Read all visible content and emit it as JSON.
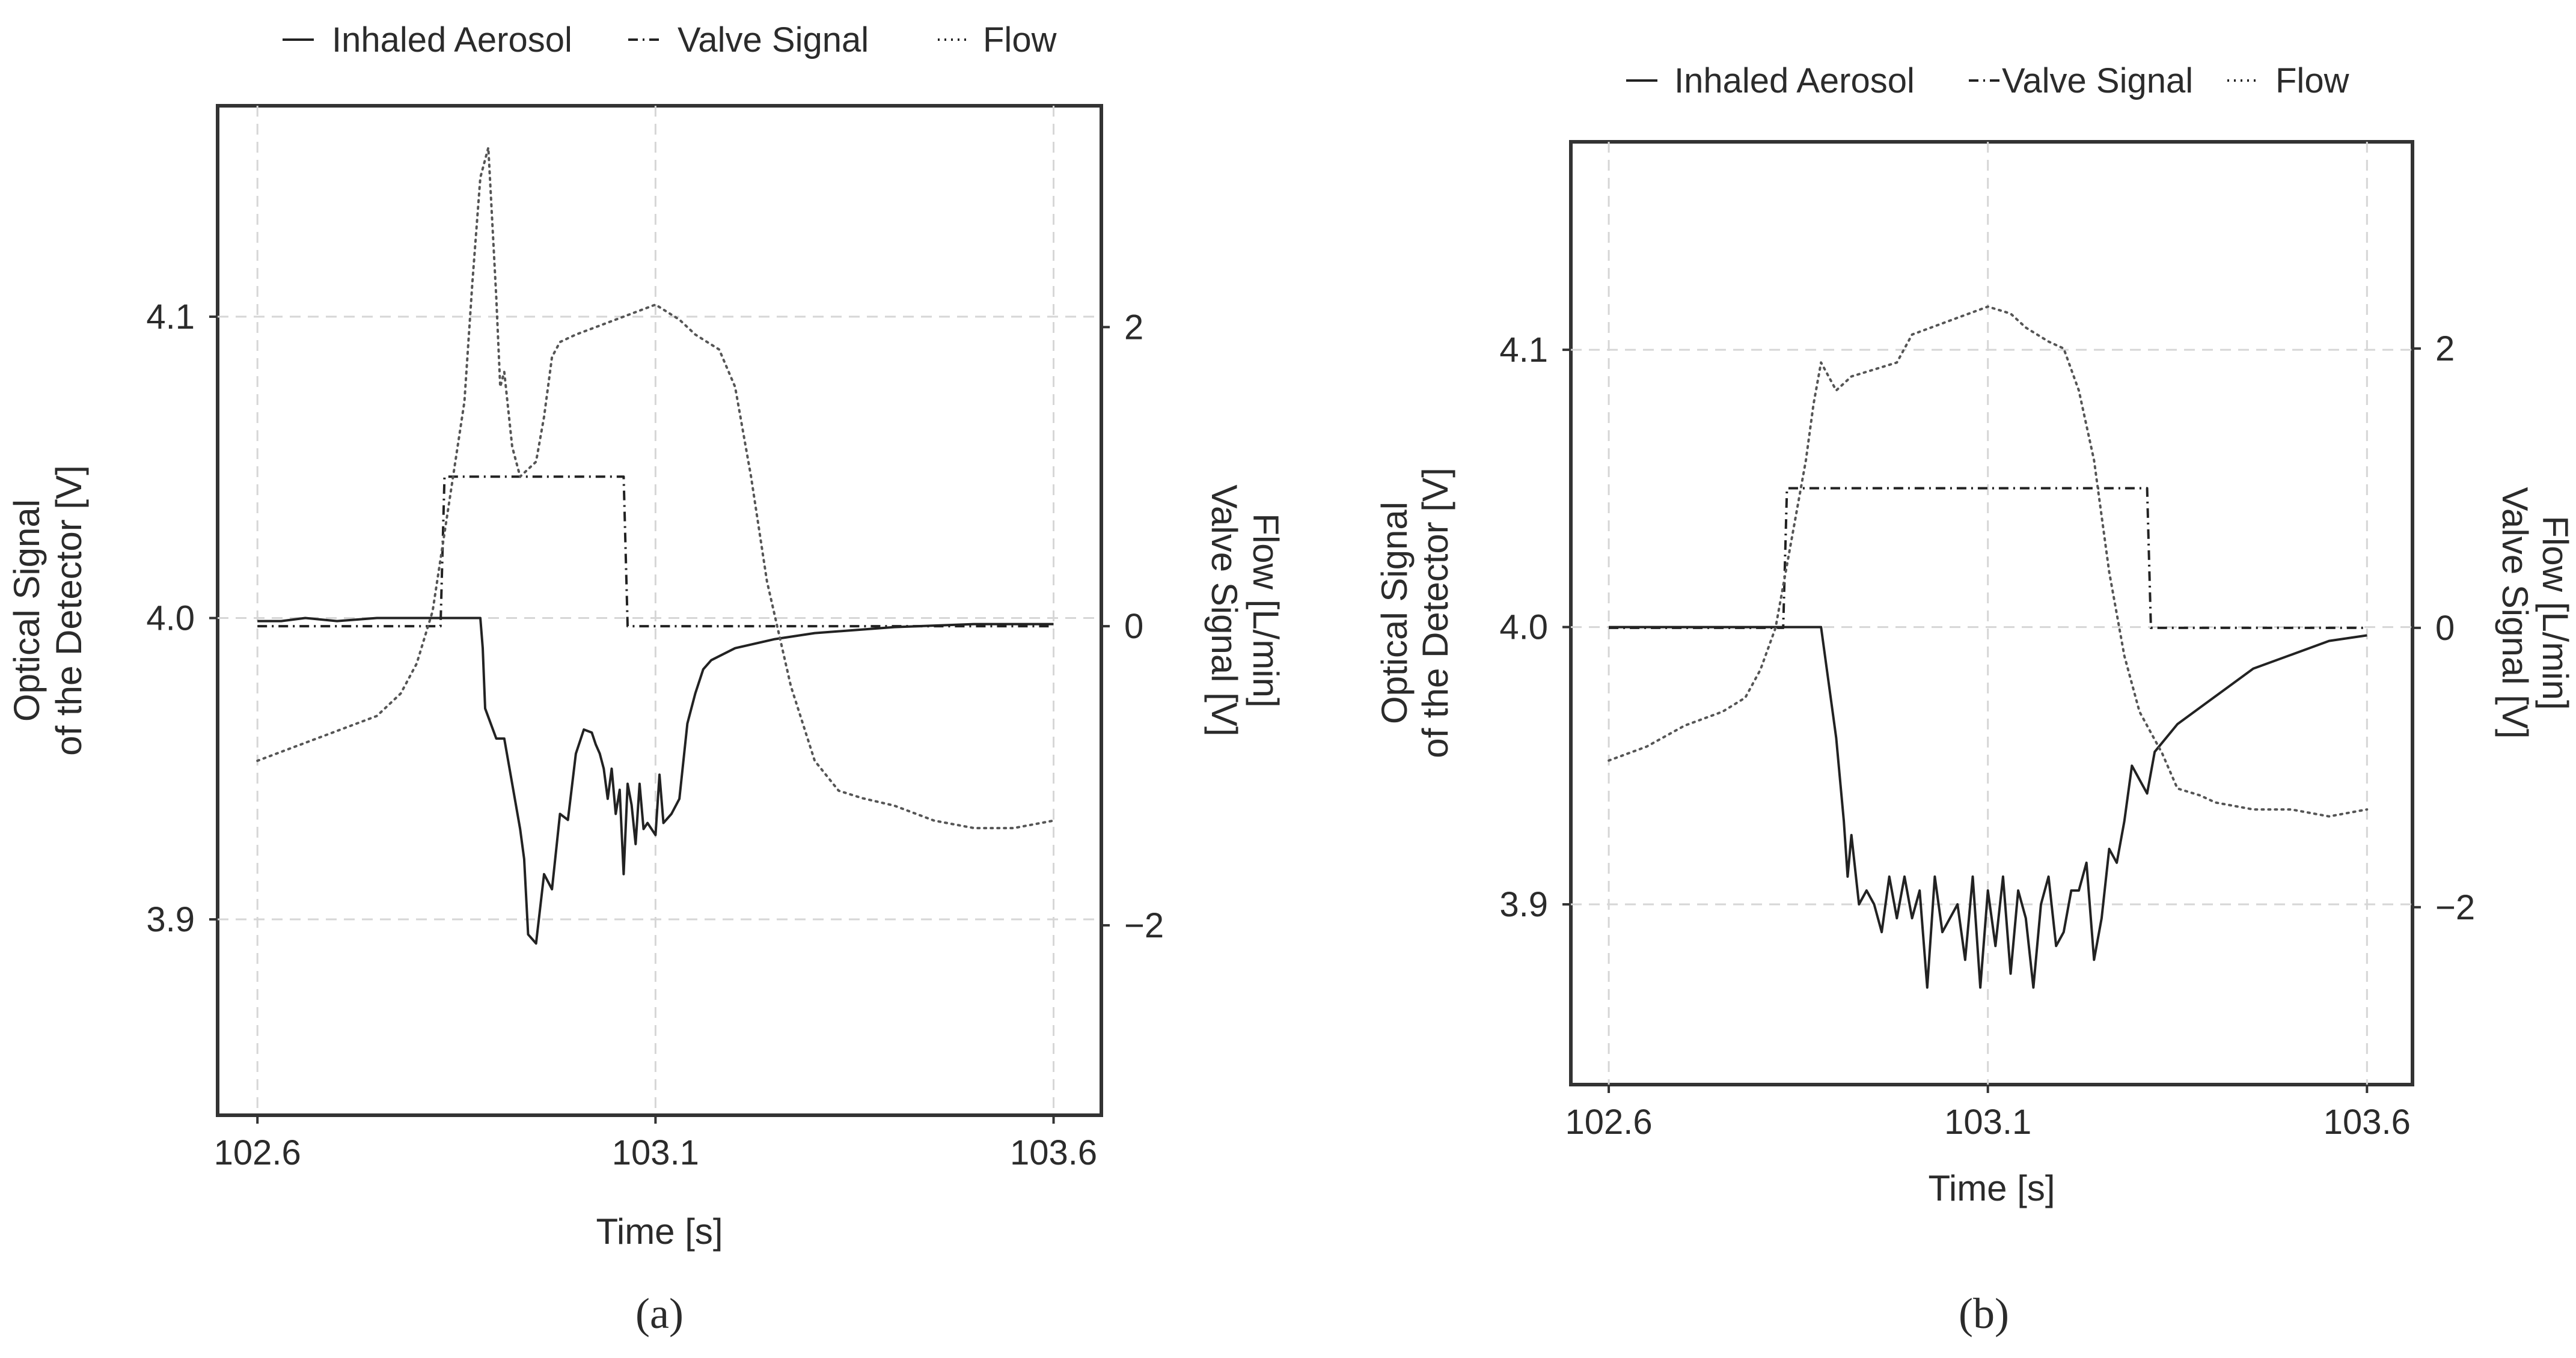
{
  "chart_data": [
    {
      "panel_label": "(a)",
      "type": "line",
      "xlabel": "Time [s]",
      "ylabel_left_lines": [
        "Optical Signal",
        "of the Detector [V]"
      ],
      "ylabel_right_lines": [
        "Flow [L/min]",
        "Valve Signal [V]"
      ],
      "xlim": [
        102.55,
        103.66
      ],
      "ylim_left": [
        3.835,
        4.17
      ],
      "ylim_right": [
        -3.27,
        3.48
      ],
      "xticks": [
        102.6,
        103.1,
        103.6
      ],
      "xtick_labels": [
        "102.6",
        "103.1",
        "103.6"
      ],
      "yticks_left": [
        3.9,
        4.0,
        4.1
      ],
      "yticks_left_labels": [
        "3.9",
        "4.0",
        "4.1"
      ],
      "yticks_right": [
        -2,
        0,
        2
      ],
      "yticks_right_labels": [
        "−2",
        "0",
        "2"
      ],
      "grid": true,
      "legend": [
        "Inhaled Aerosol",
        "Valve Signal",
        "Flow"
      ],
      "legend_position": "top",
      "series": [
        {
          "name": "Inhaled Aerosol",
          "axis": "left",
          "style": "solid",
          "x": [
            102.6,
            102.63,
            102.66,
            102.7,
            102.75,
            102.8,
            102.85,
            102.87,
            102.88,
            102.883,
            102.886,
            102.9,
            102.91,
            102.93,
            102.935,
            102.94,
            102.95,
            102.96,
            102.97,
            102.98,
            102.99,
            103.0,
            103.01,
            103.02,
            103.025,
            103.03,
            103.035,
            103.04,
            103.045,
            103.05,
            103.055,
            103.06,
            103.065,
            103.07,
            103.075,
            103.08,
            103.085,
            103.09,
            103.1,
            103.105,
            103.11,
            103.12,
            103.13,
            103.14,
            103.15,
            103.16,
            103.17,
            103.2,
            103.25,
            103.3,
            103.4,
            103.5,
            103.6
          ],
          "y": [
            3.999,
            3.999,
            4.0,
            3.999,
            4.0,
            4.0,
            4.0,
            4.0,
            4.0,
            3.99,
            3.97,
            3.96,
            3.96,
            3.93,
            3.92,
            3.895,
            3.892,
            3.915,
            3.91,
            3.935,
            3.933,
            3.955,
            3.963,
            3.962,
            3.958,
            3.955,
            3.95,
            3.94,
            3.95,
            3.935,
            3.943,
            3.915,
            3.945,
            3.938,
            3.925,
            3.945,
            3.93,
            3.932,
            3.928,
            3.948,
            3.932,
            3.935,
            3.94,
            3.965,
            3.975,
            3.983,
            3.986,
            3.99,
            3.993,
            3.995,
            3.997,
            3.998,
            3.998
          ]
        },
        {
          "name": "Valve Signal",
          "axis": "right",
          "style": "dashdot",
          "x": [
            102.6,
            102.83,
            102.835,
            103.06,
            103.065,
            103.6
          ],
          "y": [
            0,
            0,
            1,
            1,
            0,
            0
          ]
        },
        {
          "name": "Flow",
          "axis": "right",
          "style": "dotted",
          "x": [
            102.6,
            102.65,
            102.7,
            102.75,
            102.78,
            102.8,
            102.82,
            102.84,
            102.86,
            102.87,
            102.88,
            102.89,
            102.9,
            102.905,
            102.91,
            102.92,
            102.93,
            102.95,
            102.96,
            102.97,
            102.98,
            103.0,
            103.05,
            103.1,
            103.13,
            103.15,
            103.18,
            103.2,
            103.22,
            103.24,
            103.27,
            103.3,
            103.33,
            103.36,
            103.4,
            103.45,
            103.5,
            103.55,
            103.6
          ],
          "y": [
            -0.9,
            -0.8,
            -0.7,
            -0.6,
            -0.45,
            -0.25,
            0.1,
            0.8,
            1.5,
            2.3,
            3.0,
            3.2,
            2.2,
            1.6,
            1.7,
            1.2,
            1.0,
            1.1,
            1.4,
            1.8,
            1.9,
            1.95,
            2.05,
            2.15,
            2.05,
            1.95,
            1.85,
            1.6,
            1.0,
            0.3,
            -0.4,
            -0.9,
            -1.1,
            -1.15,
            -1.2,
            -1.3,
            -1.35,
            -1.35,
            -1.3
          ]
        }
      ]
    },
    {
      "panel_label": "(b)",
      "type": "line",
      "xlabel": "Time [s]",
      "ylabel_left_lines": [
        "Optical Signal",
        "of the Detector [V]"
      ],
      "ylabel_right_lines": [
        "Flow [L/min]",
        "Valve Signal [V]"
      ],
      "xlim": [
        102.55,
        103.66
      ],
      "ylim_left": [
        3.835,
        4.175
      ],
      "ylim_right": [
        -3.27,
        3.48
      ],
      "xticks": [
        102.6,
        103.1,
        103.6
      ],
      "xtick_labels": [
        "102.6",
        "103.1",
        "103.6"
      ],
      "yticks_left": [
        3.9,
        4.0,
        4.1
      ],
      "yticks_left_labels": [
        "3.9",
        "4.0",
        "4.1"
      ],
      "yticks_right": [
        -2,
        0,
        2
      ],
      "yticks_right_labels": [
        "−2",
        "0",
        "2"
      ],
      "grid": true,
      "legend": [
        "Inhaled Aerosol",
        "Valve Signal",
        "Flow"
      ],
      "legend_position": "top",
      "series": [
        {
          "name": "Inhaled Aerosol",
          "axis": "left",
          "style": "solid",
          "x": [
            102.6,
            102.7,
            102.8,
            102.86,
            102.88,
            102.89,
            102.9,
            102.91,
            102.915,
            102.92,
            102.93,
            102.94,
            102.95,
            102.96,
            102.97,
            102.98,
            102.99,
            103.0,
            103.01,
            103.02,
            103.03,
            103.04,
            103.05,
            103.06,
            103.07,
            103.08,
            103.09,
            103.1,
            103.11,
            103.12,
            103.13,
            103.14,
            103.15,
            103.16,
            103.17,
            103.18,
            103.19,
            103.2,
            103.21,
            103.22,
            103.23,
            103.24,
            103.25,
            103.26,
            103.27,
            103.28,
            103.29,
            103.3,
            103.31,
            103.32,
            103.35,
            103.4,
            103.45,
            103.5,
            103.55,
            103.6
          ],
          "y": [
            4.0,
            4.0,
            4.0,
            4.0,
            4.0,
            3.98,
            3.96,
            3.93,
            3.91,
            3.925,
            3.9,
            3.905,
            3.9,
            3.89,
            3.91,
            3.895,
            3.91,
            3.895,
            3.905,
            3.87,
            3.91,
            3.89,
            3.895,
            3.9,
            3.88,
            3.91,
            3.87,
            3.905,
            3.885,
            3.91,
            3.875,
            3.905,
            3.895,
            3.87,
            3.9,
            3.91,
            3.885,
            3.89,
            3.905,
            3.905,
            3.915,
            3.88,
            3.895,
            3.92,
            3.915,
            3.93,
            3.95,
            3.945,
            3.94,
            3.955,
            3.965,
            3.975,
            3.985,
            3.99,
            3.995,
            3.997
          ]
        },
        {
          "name": "Valve Signal",
          "axis": "right",
          "style": "dashdot",
          "x": [
            102.6,
            102.83,
            102.835,
            103.31,
            103.315,
            103.6
          ],
          "y": [
            0,
            0,
            1,
            1,
            0,
            0
          ]
        },
        {
          "name": "Flow",
          "axis": "right",
          "style": "dotted",
          "x": [
            102.6,
            102.65,
            102.7,
            102.75,
            102.78,
            102.8,
            102.82,
            102.84,
            102.86,
            102.87,
            102.88,
            102.9,
            102.92,
            102.95,
            102.98,
            103.0,
            103.05,
            103.1,
            103.13,
            103.15,
            103.18,
            103.2,
            103.22,
            103.24,
            103.26,
            103.28,
            103.3,
            103.33,
            103.35,
            103.38,
            103.4,
            103.45,
            103.5,
            103.55,
            103.6
          ],
          "y": [
            -0.95,
            -0.85,
            -0.7,
            -0.6,
            -0.5,
            -0.3,
            0.0,
            0.6,
            1.2,
            1.6,
            1.9,
            1.7,
            1.8,
            1.85,
            1.9,
            2.1,
            2.2,
            2.3,
            2.25,
            2.15,
            2.05,
            2.0,
            1.7,
            1.2,
            0.4,
            -0.2,
            -0.6,
            -0.9,
            -1.15,
            -1.2,
            -1.25,
            -1.3,
            -1.3,
            -1.35,
            -1.3
          ]
        }
      ]
    }
  ]
}
